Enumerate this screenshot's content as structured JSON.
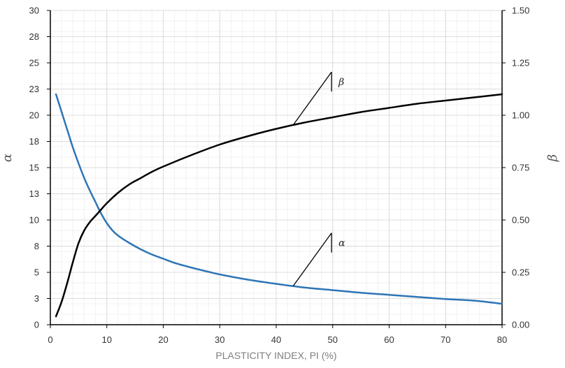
{
  "chart_data": {
    "type": "line",
    "xlabel": "PLASTICITY INDEX, PI (%)",
    "ylabel_left": "α",
    "ylabel_right": "β",
    "xlim": [
      0,
      80
    ],
    "ylim_left": [
      0,
      30
    ],
    "ylim_right": [
      0,
      1.5
    ],
    "x_ticks": [
      "0",
      "10",
      "20",
      "30",
      "40",
      "50",
      "60",
      "70",
      "80"
    ],
    "y_left_ticks": [
      "0",
      "3",
      "5",
      "8",
      "10",
      "13",
      "15",
      "18",
      "20",
      "23",
      "25",
      "28",
      "30"
    ],
    "y_right_ticks": [
      "0.00",
      "0.25",
      "0.50",
      "0.75",
      "1.00",
      "1.25",
      "1.50"
    ],
    "grid": true,
    "series": [
      {
        "name": "α",
        "axis": "left",
        "color": "#2e75b6",
        "x": [
          1,
          2,
          3,
          4,
          5,
          6,
          7,
          8,
          9,
          10,
          11,
          12,
          14,
          16,
          18,
          20,
          22,
          25,
          28,
          30,
          35,
          40,
          45,
          50,
          55,
          60,
          65,
          70,
          75,
          80
        ],
        "y": [
          22,
          20.3,
          18.6,
          16.9,
          15.4,
          14.0,
          12.8,
          11.7,
          10.6,
          9.7,
          9.0,
          8.5,
          7.8,
          7.2,
          6.7,
          6.3,
          5.9,
          5.45,
          5.05,
          4.8,
          4.3,
          3.9,
          3.55,
          3.3,
          3.05,
          2.85,
          2.65,
          2.45,
          2.3,
          2.0
        ]
      },
      {
        "name": "β",
        "axis": "right",
        "color": "#000000",
        "x": [
          1,
          2,
          3,
          4,
          5,
          6,
          7,
          8,
          9,
          10,
          12,
          14,
          16,
          18,
          20,
          25,
          30,
          35,
          40,
          45,
          50,
          55,
          60,
          65,
          70,
          75,
          80
        ],
        "y": [
          0.04,
          0.11,
          0.2,
          0.3,
          0.39,
          0.45,
          0.49,
          0.52,
          0.55,
          0.58,
          0.63,
          0.67,
          0.7,
          0.73,
          0.755,
          0.81,
          0.86,
          0.9,
          0.935,
          0.965,
          0.99,
          1.015,
          1.035,
          1.055,
          1.07,
          1.085,
          1.1
        ]
      }
    ],
    "annotations": [
      {
        "text": "β",
        "points_to_series": "β",
        "at_x": 43
      },
      {
        "text": "α",
        "points_to_series": "α",
        "at_x": 43
      }
    ]
  }
}
